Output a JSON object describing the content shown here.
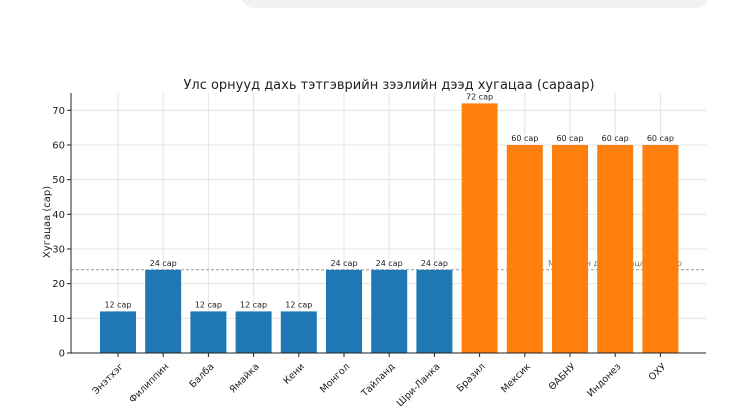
{
  "chart_data": {
    "type": "bar",
    "title": "Улс орнууд дахь тэтгэврийн зээлийн дээд хугацаа (сараар)",
    "ylabel": "Хугацаа (сар)",
    "xlabel": "",
    "ylim": [
      0,
      75
    ],
    "yticks": [
      0,
      10,
      20,
      30,
      40,
      50,
      60,
      70
    ],
    "grid": true,
    "categories": [
      "Энэтхэг",
      "Филиппин",
      "Балба",
      "Ямайка",
      "Кени",
      "Монгол",
      "Тайланд",
      "Шри-Ланка",
      "Бразил",
      "Мексик",
      "ӨАБНУ",
      "Индонез",
      "ОХУ"
    ],
    "values": [
      12,
      24,
      12,
      12,
      12,
      24,
      24,
      24,
      72,
      60,
      60,
      60,
      60
    ],
    "data_labels": [
      "12 сар",
      "24 сар",
      "12 сар",
      "12 сар",
      "12 сар",
      "24 сар",
      "24 сар",
      "24 сар",
      "72 сар",
      "60 сар",
      "60 сар",
      "60 сар",
      "60 сар"
    ],
    "bar_colors": [
      "#1f77b4",
      "#1f77b4",
      "#1f77b4",
      "#1f77b4",
      "#1f77b4",
      "#1f77b4",
      "#1f77b4",
      "#1f77b4",
      "#ff7f0e",
      "#ff7f0e",
      "#ff7f0e",
      "#ff7f0e",
      "#ff7f0e"
    ],
    "reference_line": {
      "value": 24,
      "label": "Монголын дээд хугацаа: 24 сар",
      "color": "#999999"
    }
  }
}
